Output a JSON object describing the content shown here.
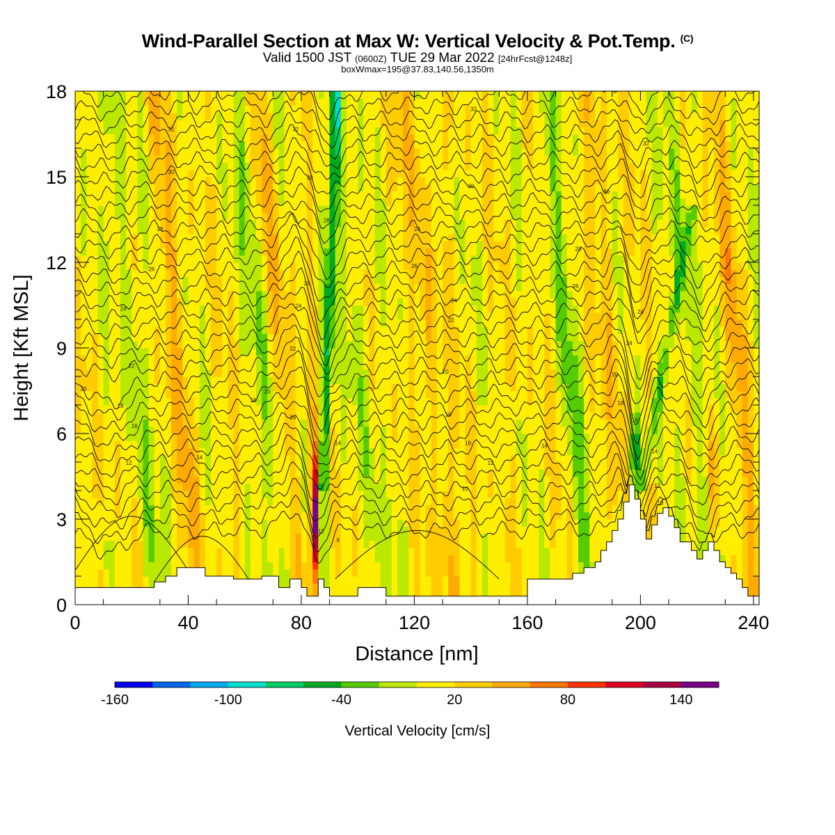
{
  "header": {
    "title_main": "Wind-Parallel Section at Max W: Vertical Velocity & Pot.Temp.",
    "title_mark": "(C)",
    "valid_prefix": "Valid 1500 JST",
    "valid_utc": "(0600Z)",
    "valid_date": "TUE 29 Mar 2022",
    "valid_fcst": "[24hrFcst@1248z]",
    "boxwmax": "boxWmax=195@37.83,140.56,1350m"
  },
  "chart_data": {
    "type": "heatmap",
    "subtype": "vertical cross-section with isentrope contours",
    "xlabel": "Distance [nm]",
    "ylabel": "Height [Kft MSL]",
    "xlim": [
      0,
      242
    ],
    "ylim": [
      0,
      18
    ],
    "xticks": [
      0,
      40,
      80,
      120,
      160,
      200,
      240
    ],
    "yticks": [
      0,
      3,
      6,
      9,
      12,
      15,
      18
    ],
    "colorbar": {
      "title": "Vertical Velocity [cm/s]",
      "min": -160,
      "max": 160,
      "step": 20,
      "tick_labels": [
        -160,
        -100,
        -40,
        20,
        80,
        140
      ],
      "colors": [
        "#0000ee",
        "#0066ee",
        "#00aaee",
        "#00ddcc",
        "#00cc66",
        "#00aa22",
        "#55cc00",
        "#bbe800",
        "#ffee00",
        "#ffcc00",
        "#ffaa00",
        "#ff7700",
        "#ff3300",
        "#dd0022",
        "#aa0044",
        "#770088"
      ]
    },
    "terrain_kft": [
      [
        0,
        0.6
      ],
      [
        28,
        0.6
      ],
      [
        28,
        0.8
      ],
      [
        32,
        0.8
      ],
      [
        32,
        1.0
      ],
      [
        36,
        1.0
      ],
      [
        36,
        1.3
      ],
      [
        46,
        1.3
      ],
      [
        46,
        1.0
      ],
      [
        56,
        1.0
      ],
      [
        56,
        0.9
      ],
      [
        66,
        0.9
      ],
      [
        66,
        1.0
      ],
      [
        72,
        1.0
      ],
      [
        72,
        0.6
      ],
      [
        76,
        0.6
      ],
      [
        76,
        0.9
      ],
      [
        80,
        0.9
      ],
      [
        80,
        0.6
      ],
      [
        82,
        0.6
      ],
      [
        82,
        0.3
      ],
      [
        86,
        0.3
      ],
      [
        86,
        0.9
      ],
      [
        88,
        0.9
      ],
      [
        88,
        0.6
      ],
      [
        90,
        0.6
      ],
      [
        90,
        0.3
      ],
      [
        100,
        0.3
      ],
      [
        100,
        0.6
      ],
      [
        110,
        0.6
      ],
      [
        110,
        0.3
      ],
      [
        160,
        0.3
      ],
      [
        160,
        0.9
      ],
      [
        176,
        0.9
      ],
      [
        176,
        1.1
      ],
      [
        180,
        1.1
      ],
      [
        180,
        1.3
      ],
      [
        184,
        1.3
      ],
      [
        184,
        1.5
      ],
      [
        186,
        1.5
      ],
      [
        186,
        1.9
      ],
      [
        188,
        1.9
      ],
      [
        188,
        2.2
      ],
      [
        190,
        2.2
      ],
      [
        190,
        2.6
      ],
      [
        192,
        2.6
      ],
      [
        192,
        3.0
      ],
      [
        194,
        3.0
      ],
      [
        194,
        3.6
      ],
      [
        196,
        3.6
      ],
      [
        196,
        4.2
      ],
      [
        198,
        4.2
      ],
      [
        198,
        3.7
      ],
      [
        200,
        3.7
      ],
      [
        200,
        3.0
      ],
      [
        202,
        3.0
      ],
      [
        202,
        2.3
      ],
      [
        204,
        2.3
      ],
      [
        204,
        2.8
      ],
      [
        206,
        2.8
      ],
      [
        206,
        3.2
      ],
      [
        208,
        3.2
      ],
      [
        208,
        3.4
      ],
      [
        210,
        3.4
      ],
      [
        210,
        3.1
      ],
      [
        212,
        3.1
      ],
      [
        212,
        2.7
      ],
      [
        214,
        2.7
      ],
      [
        214,
        2.2
      ],
      [
        218,
        2.2
      ],
      [
        218,
        1.9
      ],
      [
        220,
        1.9
      ],
      [
        220,
        1.6
      ],
      [
        222,
        1.6
      ],
      [
        222,
        1.9
      ],
      [
        224,
        1.9
      ],
      [
        224,
        2.2
      ],
      [
        226,
        2.2
      ],
      [
        226,
        1.9
      ],
      [
        228,
        1.9
      ],
      [
        228,
        1.5
      ],
      [
        230,
        1.5
      ],
      [
        230,
        1.3
      ],
      [
        232,
        1.3
      ],
      [
        232,
        1.1
      ],
      [
        234,
        1.1
      ],
      [
        234,
        0.9
      ],
      [
        236,
        0.9
      ],
      [
        236,
        0.6
      ],
      [
        238,
        0.6
      ],
      [
        238,
        0.3
      ],
      [
        242,
        0.3
      ]
    ],
    "isentrope_labels": [
      {
        "x": 19,
        "y": 4.9,
        "text": "12"
      },
      {
        "x": 44,
        "y": 5.1,
        "text": "14"
      },
      {
        "x": 21,
        "y": 6.2,
        "text": "16"
      },
      {
        "x": 16,
        "y": 6.9,
        "text": "18"
      },
      {
        "x": 3,
        "y": 7.5,
        "text": "20"
      },
      {
        "x": 20,
        "y": 8.3,
        "text": "22"
      },
      {
        "x": 17,
        "y": 10.3,
        "text": "24"
      },
      {
        "x": 27,
        "y": 11.7,
        "text": "26"
      },
      {
        "x": 30,
        "y": 13.1,
        "text": "28"
      },
      {
        "x": 34,
        "y": 15.1,
        "text": "30"
      },
      {
        "x": 34,
        "y": 16.6,
        "text": "32"
      },
      {
        "x": 63,
        "y": 7.1,
        "text": "18"
      },
      {
        "x": 68,
        "y": 7.4,
        "text": "20"
      },
      {
        "x": 77,
        "y": 8.9,
        "text": "22"
      },
      {
        "x": 79,
        "y": 10.4,
        "text": "24"
      },
      {
        "x": 82,
        "y": 11.2,
        "text": "26"
      },
      {
        "x": 89,
        "y": 13.4,
        "text": "28"
      },
      {
        "x": 83,
        "y": 14.9,
        "text": "30"
      },
      {
        "x": 78,
        "y": 16.6,
        "text": "32"
      },
      {
        "x": 77,
        "y": 6.5,
        "text": "16"
      },
      {
        "x": 93,
        "y": 5.6,
        "text": "14"
      },
      {
        "x": 87,
        "y": 2.5,
        "text": "12"
      },
      {
        "x": 93,
        "y": 2.2,
        "text": "8"
      },
      {
        "x": 138,
        "y": 4.0,
        "text": "10"
      },
      {
        "x": 147,
        "y": 4.9,
        "text": "12"
      },
      {
        "x": 139,
        "y": 5.6,
        "text": "16"
      },
      {
        "x": 166,
        "y": 5.5,
        "text": "14"
      },
      {
        "x": 132,
        "y": 6.6,
        "text": "16"
      },
      {
        "x": 131,
        "y": 8.1,
        "text": "20"
      },
      {
        "x": 133,
        "y": 9.9,
        "text": "22"
      },
      {
        "x": 134,
        "y": 10.6,
        "text": "24"
      },
      {
        "x": 120,
        "y": 11.8,
        "text": "26"
      },
      {
        "x": 121,
        "y": 13.1,
        "text": "28"
      },
      {
        "x": 140,
        "y": 14.6,
        "text": "30"
      },
      {
        "x": 141,
        "y": 17.3,
        "text": "32"
      },
      {
        "x": 177,
        "y": 11.1,
        "text": "26"
      },
      {
        "x": 178,
        "y": 12.4,
        "text": "28"
      },
      {
        "x": 188,
        "y": 14.4,
        "text": "30"
      },
      {
        "x": 202,
        "y": 16.1,
        "text": "32"
      },
      {
        "x": 200,
        "y": 10.2,
        "text": "24"
      },
      {
        "x": 196,
        "y": 9.1,
        "text": "24"
      },
      {
        "x": 191,
        "y": 8.0,
        "text": "20"
      },
      {
        "x": 193,
        "y": 7.0,
        "text": "18"
      },
      {
        "x": 198,
        "y": 6.4,
        "text": "16"
      },
      {
        "x": 205,
        "y": 5.3,
        "text": "14"
      },
      {
        "x": 206,
        "y": 4.1,
        "text": "12"
      },
      {
        "x": 207,
        "y": 3.5,
        "text": "10"
      }
    ]
  }
}
